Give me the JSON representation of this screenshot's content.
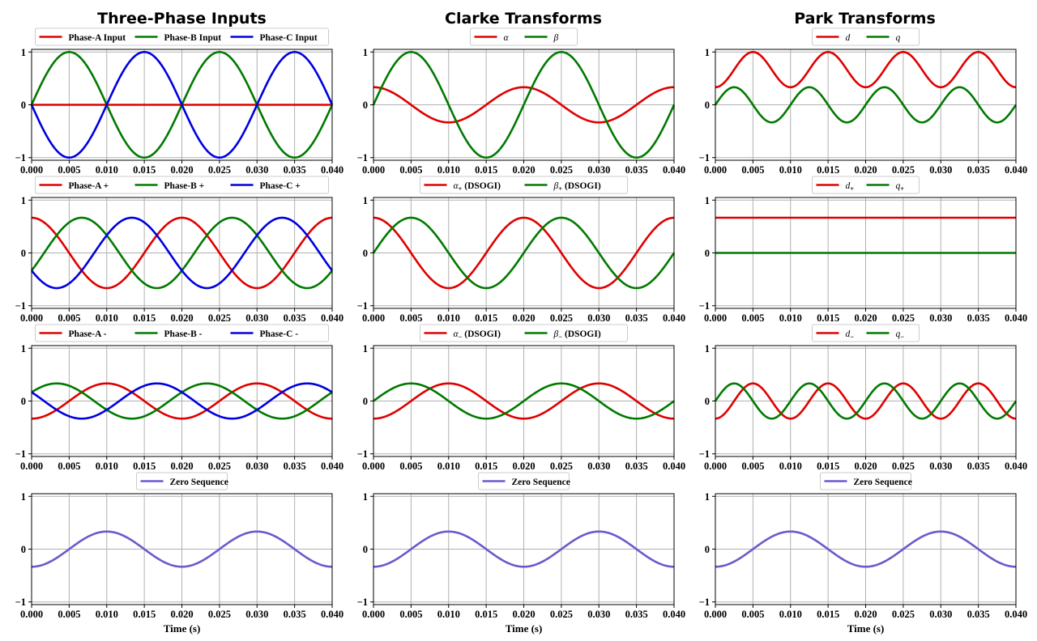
{
  "column_titles": [
    "Three-Phase Inputs",
    "Clarke Transforms",
    "Park Transforms"
  ],
  "xlabel": "Time (s)",
  "colors": {
    "red": "#e00000",
    "green": "#007a00",
    "blue": "#0000e0",
    "purple": "#6a5acd",
    "grid": "#b0b0b0"
  },
  "chart_data": [
    {
      "type": "line",
      "row": 0,
      "col": 0,
      "xlim": [
        0,
        0.04
      ],
      "ylim": [
        -1.05,
        1.05
      ],
      "xticks": [
        "0.000",
        "0.005",
        "0.010",
        "0.015",
        "0.020",
        "0.025",
        "0.030",
        "0.035",
        "0.040"
      ],
      "yticks": [
        "1",
        "0",
        "−1"
      ],
      "grid": true,
      "legend": "top-center",
      "xlabel": "",
      "series": [
        {
          "name": "Phase-A Input",
          "color": "red",
          "fn": "0"
        },
        {
          "name": "Phase-B Input",
          "color": "green",
          "fn": "sin(wt)"
        },
        {
          "name": "Phase-C Input",
          "color": "blue",
          "fn": "-sin(wt)"
        }
      ],
      "legend_ncol": 3
    },
    {
      "type": "line",
      "row": 0,
      "col": 1,
      "xlim": [
        0,
        0.04
      ],
      "ylim": [
        -1.05,
        1.05
      ],
      "xticks": [
        "0.000",
        "0.005",
        "0.010",
        "0.015",
        "0.020",
        "0.025",
        "0.030",
        "0.035",
        "0.040"
      ],
      "yticks": [
        "1",
        "0",
        "−1"
      ],
      "grid": true,
      "legend": "top-center",
      "xlabel": "",
      "series": [
        {
          "name": "α",
          "color": "red",
          "fn": "1/3 cos(wt)"
        },
        {
          "name": "β",
          "color": "green",
          "fn": "sin(wt)"
        }
      ],
      "legend_ncol": 2
    },
    {
      "type": "line",
      "row": 0,
      "col": 2,
      "xlim": [
        0,
        0.04
      ],
      "ylim": [
        -1.05,
        1.05
      ],
      "xticks": [
        "0.000",
        "0.005",
        "0.010",
        "0.015",
        "0.020",
        "0.025",
        "0.030",
        "0.035",
        "0.040"
      ],
      "yticks": [
        "1",
        "0",
        "−1"
      ],
      "grid": true,
      "legend": "top-center",
      "xlabel": "",
      "series": [
        {
          "name": "d",
          "color": "red",
          "fn": "2/3 - 1/3 cos(2wt)"
        },
        {
          "name": "q",
          "color": "green",
          "fn": "1/3 sin(2wt)"
        }
      ],
      "legend_ncol": 2
    },
    {
      "type": "line",
      "row": 1,
      "col": 0,
      "xlim": [
        0,
        0.04
      ],
      "ylim": [
        -1.05,
        1.05
      ],
      "xticks": [
        "0.000",
        "0.005",
        "0.010",
        "0.015",
        "0.020",
        "0.025",
        "0.030",
        "0.035",
        "0.040"
      ],
      "yticks": [
        "1",
        "0",
        "−1"
      ],
      "grid": true,
      "legend": "top-center",
      "xlabel": "",
      "series": [
        {
          "name": "Phase-A +",
          "color": "red",
          "fn": "2/3 cos(wt)"
        },
        {
          "name": "Phase-B +",
          "color": "green",
          "fn": "2/3 cos(wt-2pi/3)"
        },
        {
          "name": "Phase-C +",
          "color": "blue",
          "fn": "2/3 cos(wt+2pi/3)"
        }
      ],
      "legend_ncol": 3
    },
    {
      "type": "line",
      "row": 1,
      "col": 1,
      "xlim": [
        0,
        0.04
      ],
      "ylim": [
        -1.05,
        1.05
      ],
      "xticks": [
        "0.000",
        "0.005",
        "0.010",
        "0.015",
        "0.020",
        "0.025",
        "0.030",
        "0.035",
        "0.040"
      ],
      "yticks": [
        "1",
        "0",
        "−1"
      ],
      "grid": true,
      "legend": "top-center",
      "xlabel": "",
      "series": [
        {
          "name": "α+ (DSOGI)",
          "color": "red",
          "fn": "2/3 cos(wt)"
        },
        {
          "name": "β+ (DSOGI)",
          "color": "green",
          "fn": "2/3 sin(wt)"
        }
      ],
      "legend_ncol": 2
    },
    {
      "type": "line",
      "row": 1,
      "col": 2,
      "xlim": [
        0,
        0.04
      ],
      "ylim": [
        -1.05,
        1.05
      ],
      "xticks": [
        "0.000",
        "0.005",
        "0.010",
        "0.015",
        "0.020",
        "0.025",
        "0.030",
        "0.035",
        "0.040"
      ],
      "yticks": [
        "1",
        "0",
        "−1"
      ],
      "grid": true,
      "legend": "top-center",
      "xlabel": "",
      "series": [
        {
          "name": "d+",
          "color": "red",
          "fn": "2/3"
        },
        {
          "name": "q+",
          "color": "green",
          "fn": "0"
        }
      ],
      "legend_ncol": 2
    },
    {
      "type": "line",
      "row": 2,
      "col": 0,
      "xlim": [
        0,
        0.04
      ],
      "ylim": [
        -1.05,
        1.05
      ],
      "xticks": [
        "0.000",
        "0.005",
        "0.010",
        "0.015",
        "0.020",
        "0.025",
        "0.030",
        "0.035",
        "0.040"
      ],
      "yticks": [
        "1",
        "0",
        "−1"
      ],
      "grid": true,
      "legend": "top-center",
      "xlabel": "",
      "series": [
        {
          "name": "Phase-A -",
          "color": "red",
          "fn": "-1/3 cos(wt)"
        },
        {
          "name": "Phase-B -",
          "color": "green",
          "fn": "-1/3 cos(wt+2pi/3)"
        },
        {
          "name": "Phase-C -",
          "color": "blue",
          "fn": "-1/3 cos(wt-2pi/3)"
        }
      ],
      "legend_ncol": 3
    },
    {
      "type": "line",
      "row": 2,
      "col": 1,
      "xlim": [
        0,
        0.04
      ],
      "ylim": [
        -1.05,
        1.05
      ],
      "xticks": [
        "0.000",
        "0.005",
        "0.010",
        "0.015",
        "0.020",
        "0.025",
        "0.030",
        "0.035",
        "0.040"
      ],
      "yticks": [
        "1",
        "0",
        "−1"
      ],
      "grid": true,
      "legend": "top-center",
      "xlabel": "",
      "series": [
        {
          "name": "α− (DSOGI)",
          "color": "red",
          "fn": "-1/3 cos(wt)"
        },
        {
          "name": "β− (DSOGI)",
          "color": "green",
          "fn": "1/3 sin(wt)"
        }
      ],
      "legend_ncol": 2
    },
    {
      "type": "line",
      "row": 2,
      "col": 2,
      "xlim": [
        0,
        0.04
      ],
      "ylim": [
        -1.05,
        1.05
      ],
      "xticks": [
        "0.000",
        "0.005",
        "0.010",
        "0.015",
        "0.020",
        "0.025",
        "0.030",
        "0.035",
        "0.040"
      ],
      "yticks": [
        "1",
        "0",
        "−1"
      ],
      "grid": true,
      "legend": "top-center",
      "xlabel": "",
      "series": [
        {
          "name": "d−",
          "color": "red",
          "fn": "-1/3 cos(2wt)"
        },
        {
          "name": "q−",
          "color": "green",
          "fn": "1/3 sin(2wt)"
        }
      ],
      "legend_ncol": 2
    },
    {
      "type": "line",
      "row": 3,
      "col": 0,
      "xlim": [
        0,
        0.04
      ],
      "ylim": [
        -1.05,
        1.05
      ],
      "xticks": [
        "0.000",
        "0.005",
        "0.010",
        "0.015",
        "0.020",
        "0.025",
        "0.030",
        "0.035",
        "0.040"
      ],
      "yticks": [
        "1",
        "0",
        "−1"
      ],
      "grid": true,
      "legend": "top-center",
      "xlabel": "Time (s)",
      "series": [
        {
          "name": "Zero Sequence",
          "color": "purple",
          "fn": "-1/3 cos(wt)"
        }
      ],
      "legend_ncol": 1
    },
    {
      "type": "line",
      "row": 3,
      "col": 1,
      "xlim": [
        0,
        0.04
      ],
      "ylim": [
        -1.05,
        1.05
      ],
      "xticks": [
        "0.000",
        "0.005",
        "0.010",
        "0.015",
        "0.020",
        "0.025",
        "0.030",
        "0.035",
        "0.040"
      ],
      "yticks": [
        "1",
        "0",
        "−1"
      ],
      "grid": true,
      "legend": "top-center",
      "xlabel": "Time (s)",
      "series": [
        {
          "name": "Zero Sequence",
          "color": "purple",
          "fn": "-1/3 cos(wt)"
        }
      ],
      "legend_ncol": 1
    },
    {
      "type": "line",
      "row": 3,
      "col": 2,
      "xlim": [
        0,
        0.04
      ],
      "ylim": [
        -1.05,
        1.05
      ],
      "xticks": [
        "0.000",
        "0.005",
        "0.010",
        "0.015",
        "0.020",
        "0.025",
        "0.030",
        "0.035",
        "0.040"
      ],
      "yticks": [
        "1",
        "0",
        "−1"
      ],
      "grid": true,
      "legend": "top-center",
      "xlabel": "Time (s)",
      "series": [
        {
          "name": "Zero Sequence",
          "color": "purple",
          "fn": "-1/3 cos(wt)"
        }
      ],
      "legend_ncol": 1
    }
  ]
}
